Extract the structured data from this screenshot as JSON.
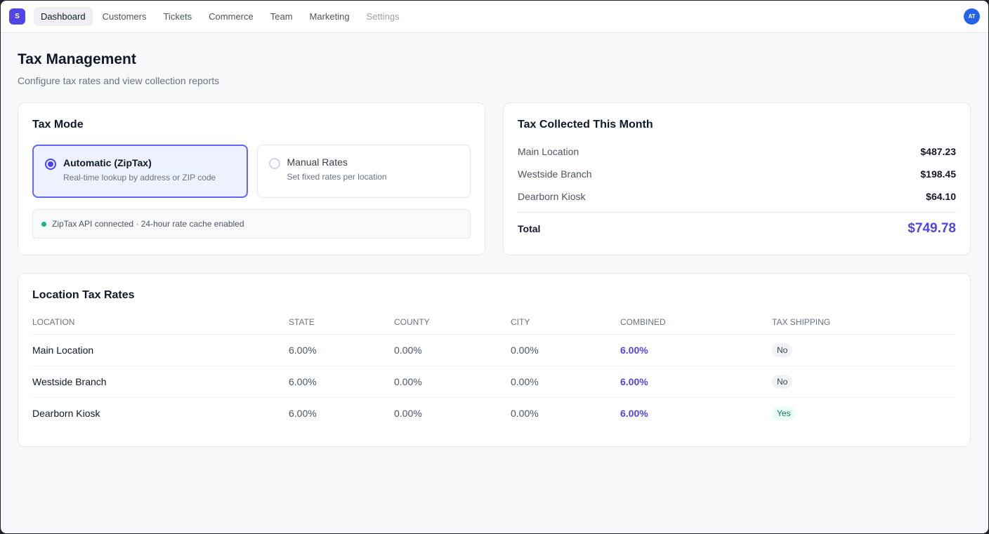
{
  "nav": {
    "logo": "S",
    "items": [
      {
        "label": "Dashboard"
      },
      {
        "label": "Customers"
      },
      {
        "label": "Tickets"
      },
      {
        "label": "Commerce"
      },
      {
        "label": "Team"
      },
      {
        "label": "Marketing"
      },
      {
        "label": "Settings"
      }
    ],
    "avatar": "AT"
  },
  "page": {
    "title": "Tax Management",
    "subtitle": "Configure tax rates and view collection reports"
  },
  "tax_mode": {
    "title": "Tax Mode",
    "options": [
      {
        "label": "Automatic (ZipTax)",
        "description": "Real-time lookup by address or ZIP code",
        "selected": true
      },
      {
        "label": "Manual Rates",
        "description": "Set fixed rates per location",
        "selected": false
      }
    ],
    "status": "ZipTax API connected · 24-hour rate cache enabled"
  },
  "collected": {
    "title": "Tax Collected This Month",
    "rows": [
      {
        "label": "Main Location",
        "amount": "$487.23"
      },
      {
        "label": "Westside Branch",
        "amount": "$198.45"
      },
      {
        "label": "Dearborn Kiosk",
        "amount": "$64.10"
      }
    ],
    "total_label": "Total",
    "total_amount": "$749.78"
  },
  "rates": {
    "title": "Location Tax Rates",
    "headers": [
      "Location",
      "State",
      "County",
      "City",
      "Combined",
      "Tax Shipping"
    ],
    "rows": [
      {
        "location": "Main Location",
        "state": "6.00%",
        "county": "0.00%",
        "city": "0.00%",
        "combined": "6.00%",
        "shipping": "No"
      },
      {
        "location": "Westside Branch",
        "state": "6.00%",
        "county": "0.00%",
        "city": "0.00%",
        "combined": "6.00%",
        "shipping": "No"
      },
      {
        "location": "Dearborn Kiosk",
        "state": "6.00%",
        "county": "0.00%",
        "city": "0.00%",
        "combined": "6.00%",
        "shipping": "Yes"
      }
    ]
  },
  "colors": {
    "accent": "#4f46e5",
    "success": "#10b981"
  }
}
